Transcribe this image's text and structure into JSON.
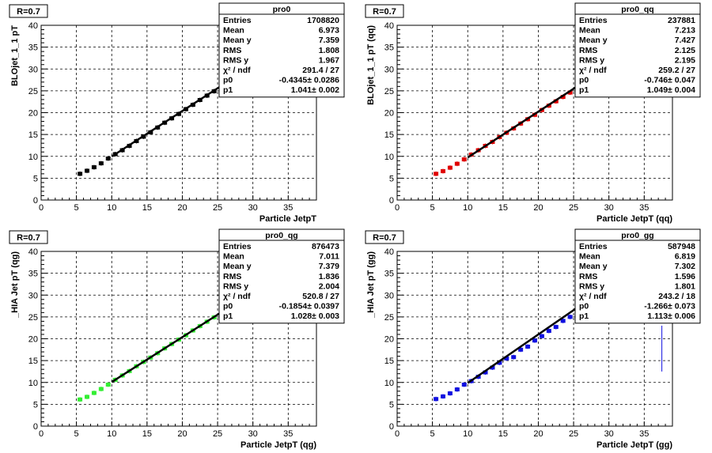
{
  "chart_data": [
    {
      "type": "scatter",
      "panel_label": "R=0.7",
      "xlabel": "Particle JetpT",
      "ylabel": "BLOjet_1_1 pT",
      "xlim": [
        0,
        39
      ],
      "ylim": [
        0,
        40
      ],
      "x_ticks": [
        "0",
        "5",
        "10",
        "15",
        "20",
        "25",
        "30",
        "35"
      ],
      "y_ticks": [
        "0",
        "5",
        "10",
        "15",
        "20",
        "25",
        "30",
        "35",
        "40"
      ],
      "grid": true,
      "marker_color": "#000000",
      "fit_color": "#000000",
      "stats": {
        "title": "pro0",
        "rows": [
          {
            "label": "Entries",
            "value": "1708820"
          },
          {
            "label": "Mean",
            "value": "6.973"
          },
          {
            "label": "Mean y",
            "value": "7.359"
          },
          {
            "label": "RMS",
            "value": "1.808"
          },
          {
            "label": "RMS y",
            "value": "1.967"
          },
          {
            "label": "χ² / ndf",
            "value": "291.4 / 27"
          },
          {
            "label": "p0",
            "value": "-0.4345± 0.0286"
          },
          {
            "label": "p1",
            "value": "1.041± 0.002"
          }
        ]
      },
      "fit": {
        "p0": -0.4345,
        "p1": 1.041,
        "x_range": [
          10,
          38
        ]
      },
      "points": [
        [
          5.5,
          6.0
        ],
        [
          6.5,
          6.7
        ],
        [
          7.5,
          7.5
        ],
        [
          8.5,
          8.4
        ],
        [
          9.5,
          9.5
        ],
        [
          10.5,
          10.5
        ],
        [
          11.5,
          11.4
        ],
        [
          12.5,
          12.4
        ],
        [
          13.5,
          13.5
        ],
        [
          14.5,
          14.5
        ],
        [
          15.5,
          15.5
        ],
        [
          16.5,
          16.6
        ],
        [
          17.5,
          17.7
        ],
        [
          18.5,
          18.7
        ],
        [
          19.5,
          19.7
        ],
        [
          20.5,
          20.8
        ],
        [
          21.5,
          21.8
        ],
        [
          22.5,
          22.9
        ],
        [
          23.5,
          23.9
        ],
        [
          24.5,
          24.9
        ],
        [
          25.5,
          25.9
        ]
      ]
    },
    {
      "type": "scatter",
      "panel_label": "R=0.7",
      "xlabel": "Particle JetpT (qq)",
      "ylabel": "BLOjet_1_1 pT (qq)",
      "xlim": [
        0,
        39
      ],
      "ylim": [
        0,
        40
      ],
      "x_ticks": [
        "0",
        "5",
        "10",
        "15",
        "20",
        "25",
        "30",
        "35"
      ],
      "y_ticks": [
        "0",
        "5",
        "10",
        "15",
        "20",
        "25",
        "30",
        "35",
        "40"
      ],
      "grid": true,
      "marker_color": "#e00000",
      "fit_color": "#000000",
      "stats": {
        "title": "pro0_qq",
        "rows": [
          {
            "label": "Entries",
            "value": "237881"
          },
          {
            "label": "Mean",
            "value": "7.213"
          },
          {
            "label": "Mean y",
            "value": "7.427"
          },
          {
            "label": "RMS",
            "value": "2.125"
          },
          {
            "label": "RMS y",
            "value": "2.195"
          },
          {
            "label": "χ² / ndf",
            "value": "259.2 / 27"
          },
          {
            "label": "p0",
            "value": "-0.746± 0.047"
          },
          {
            "label": "p1",
            "value": "1.049± 0.004"
          }
        ]
      },
      "fit": {
        "p0": -0.746,
        "p1": 1.049,
        "x_range": [
          10,
          38
        ]
      },
      "points": [
        [
          5.5,
          6.0
        ],
        [
          6.5,
          6.6
        ],
        [
          7.5,
          7.4
        ],
        [
          8.5,
          8.3
        ],
        [
          9.5,
          9.3
        ],
        [
          10.5,
          10.4
        ],
        [
          11.5,
          11.4
        ],
        [
          12.5,
          12.4
        ],
        [
          13.5,
          13.3
        ],
        [
          14.5,
          14.4
        ],
        [
          15.5,
          15.4
        ],
        [
          16.5,
          16.4
        ],
        [
          17.5,
          17.5
        ],
        [
          18.5,
          18.5
        ],
        [
          19.5,
          19.5
        ],
        [
          20.5,
          20.6
        ],
        [
          21.5,
          21.6
        ],
        [
          22.5,
          22.6
        ],
        [
          23.5,
          23.6
        ],
        [
          24.5,
          24.6
        ],
        [
          25.5,
          25.6
        ]
      ]
    },
    {
      "type": "scatter",
      "panel_label": "R=0.7",
      "xlabel": "Particle JetpT (qg)",
      "ylabel": "_HIA Jet pT (qg)",
      "xlim": [
        0,
        39
      ],
      "ylim": [
        0,
        40
      ],
      "x_ticks": [
        "0",
        "5",
        "10",
        "15",
        "20",
        "25",
        "30",
        "35"
      ],
      "y_ticks": [
        "0",
        "5",
        "10",
        "15",
        "20",
        "25",
        "30",
        "35",
        "40"
      ],
      "grid": true,
      "marker_color": "#33ee33",
      "fit_color": "#000000",
      "stats": {
        "title": "pro0_qg",
        "rows": [
          {
            "label": "Entries",
            "value": "876473"
          },
          {
            "label": "Mean",
            "value": "7.011"
          },
          {
            "label": "Mean y",
            "value": "7.379"
          },
          {
            "label": "RMS",
            "value": "1.836"
          },
          {
            "label": "RMS y",
            "value": "2.004"
          },
          {
            "label": "χ² / ndf",
            "value": "520.8 / 27"
          },
          {
            "label": "p0",
            "value": "-0.1854± 0.0397"
          },
          {
            "label": "p1",
            "value": "1.028± 0.003"
          }
        ]
      },
      "fit": {
        "p0": -0.1854,
        "p1": 1.028,
        "x_range": [
          10,
          38
        ]
      },
      "points": [
        [
          5.5,
          6.1
        ],
        [
          6.5,
          6.7
        ],
        [
          7.5,
          7.6
        ],
        [
          8.5,
          8.5
        ],
        [
          9.5,
          9.5
        ],
        [
          10.5,
          10.6
        ],
        [
          11.5,
          11.6
        ],
        [
          12.5,
          12.6
        ],
        [
          13.5,
          13.7
        ],
        [
          14.5,
          14.7
        ],
        [
          15.5,
          15.7
        ],
        [
          16.5,
          16.7
        ],
        [
          17.5,
          17.8
        ],
        [
          18.5,
          18.8
        ],
        [
          19.5,
          19.8
        ],
        [
          20.5,
          20.8
        ],
        [
          21.5,
          21.9
        ],
        [
          22.5,
          22.9
        ],
        [
          23.5,
          23.9
        ],
        [
          24.5,
          24.9
        ],
        [
          25.5,
          26.0
        ]
      ]
    },
    {
      "type": "scatter",
      "panel_label": "R=0.7",
      "xlabel": "Particle JetpT (gg)",
      "ylabel": "_HIA Jet pT (gg)",
      "xlim": [
        0,
        39
      ],
      "ylim": [
        0,
        40
      ],
      "x_ticks": [
        "0",
        "5",
        "10",
        "15",
        "20",
        "25",
        "30",
        "35"
      ],
      "y_ticks": [
        "0",
        "5",
        "10",
        "15",
        "20",
        "25",
        "30",
        "35",
        "40"
      ],
      "grid": true,
      "marker_color": "#1010e0",
      "fit_color": "#000000",
      "stats": {
        "title": "pro0_gg",
        "rows": [
          {
            "label": "Entries",
            "value": "587948"
          },
          {
            "label": "Mean",
            "value": "6.819"
          },
          {
            "label": "Mean y",
            "value": "7.302"
          },
          {
            "label": "RMS",
            "value": "1.596"
          },
          {
            "label": "RMS y",
            "value": "1.801"
          },
          {
            "label": "χ² / ndf",
            "value": "243.2 / 18"
          },
          {
            "label": "p0",
            "value": "-1.266± 0.073"
          },
          {
            "label": "p1",
            "value": "1.113± 0.006"
          }
        ]
      },
      "fit": {
        "p0": -1.266,
        "p1": 1.113,
        "x_range": [
          10,
          38
        ]
      },
      "points": [
        [
          5.5,
          6.2
        ],
        [
          6.5,
          6.8
        ],
        [
          7.5,
          7.5
        ],
        [
          8.5,
          8.4
        ],
        [
          9.5,
          9.5
        ],
        [
          10.5,
          10.3
        ],
        [
          11.5,
          11.3
        ],
        [
          12.5,
          12.3
        ],
        [
          13.5,
          13.4
        ],
        [
          14.5,
          14.5
        ],
        [
          15.5,
          15.5
        ],
        [
          16.5,
          15.8
        ],
        [
          17.5,
          17.5
        ],
        [
          18.5,
          18.2
        ],
        [
          19.5,
          19.6
        ],
        [
          20.5,
          20.6
        ],
        [
          21.5,
          21.8
        ],
        [
          22.5,
          22.7
        ],
        [
          23.5,
          24.1
        ],
        [
          24.5,
          25.0
        ],
        [
          25.5,
          25.6
        ]
      ],
      "outlier": {
        "x": 37.5,
        "y_low": 12.5,
        "y_high": 23.0
      }
    }
  ]
}
